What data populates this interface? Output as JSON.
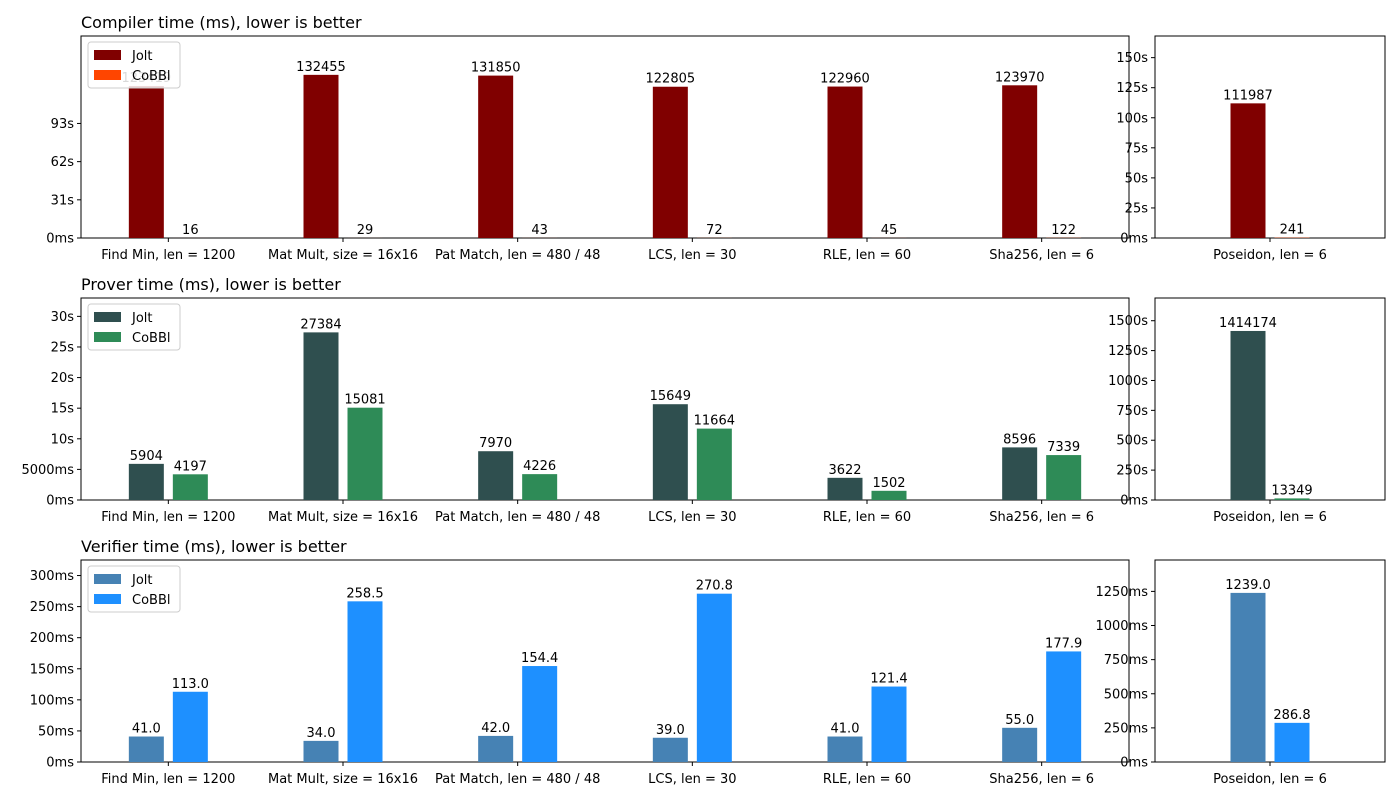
{
  "chart_data": [
    {
      "type": "bar",
      "panel": "compiler-main",
      "title": "Compiler time (ms), lower is better",
      "categories": [
        "Find Min, len = 1200",
        "Mat Mult, size = 16x16",
        "Pat Match, len = 480 / 48",
        "LCS, len = 30",
        "RLE, len = 60",
        "Sha256, len = 6"
      ],
      "series": [
        {
          "name": "Jolt",
          "color": "#800000",
          "values": [
            123419,
            132455,
            131850,
            122805,
            122960,
            123970
          ],
          "labels": [
            "123419",
            "132455",
            "131850",
            "122805",
            "122960",
            "123970"
          ]
        },
        {
          "name": "CoBBl",
          "color": "#ff4500",
          "values": [
            16,
            29,
            43,
            72,
            45,
            122
          ],
          "labels": [
            "16",
            "29",
            "43",
            "72",
            "45",
            "122"
          ]
        }
      ],
      "ylim": [
        0,
        164000
      ],
      "yticks": [
        0,
        31000,
        62000,
        93000
      ],
      "yticklabels": [
        "0ms",
        "31s",
        "62s",
        "93s"
      ],
      "legend": "top-left"
    },
    {
      "type": "bar",
      "panel": "compiler-side",
      "title": "",
      "categories": [
        "Poseidon, len = 6"
      ],
      "series": [
        {
          "name": "Jolt",
          "color": "#800000",
          "values": [
            111987
          ],
          "labels": [
            "111987"
          ]
        },
        {
          "name": "CoBBl",
          "color": "#ff4500",
          "values": [
            241
          ],
          "labels": [
            "241"
          ]
        }
      ],
      "ylim": [
        0,
        168000
      ],
      "yticks": [
        0,
        25000,
        50000,
        75000,
        100000,
        125000,
        150000
      ],
      "yticklabels": [
        "0ms",
        "25s",
        "50s",
        "75s",
        "100s",
        "125s",
        "150s"
      ]
    },
    {
      "type": "bar",
      "panel": "prover-main",
      "title": "Prover time (ms), lower is better",
      "categories": [
        "Find Min, len = 1200",
        "Mat Mult, size = 16x16",
        "Pat Match, len = 480 / 48",
        "LCS, len = 30",
        "RLE, len = 60",
        "Sha256, len = 6"
      ],
      "series": [
        {
          "name": "Jolt",
          "color": "#2f4f4f",
          "values": [
            5904,
            27384,
            7970,
            15649,
            3622,
            8596
          ],
          "labels": [
            "5904",
            "27384",
            "7970",
            "15649",
            "3622",
            "8596"
          ]
        },
        {
          "name": "CoBBl",
          "color": "#2e8b57",
          "values": [
            4197,
            15081,
            4226,
            11664,
            1502,
            7339
          ],
          "labels": [
            "4197",
            "15081",
            "4226",
            "11664",
            "1502",
            "7339"
          ]
        }
      ],
      "ylim": [
        0,
        33000
      ],
      "yticks": [
        0,
        5000,
        10000,
        15000,
        20000,
        25000,
        30000
      ],
      "yticklabels": [
        "0ms",
        "5000ms",
        "10s",
        "15s",
        "20s",
        "25s",
        "30s"
      ],
      "legend": "top-left"
    },
    {
      "type": "bar",
      "panel": "prover-side",
      "title": "",
      "categories": [
        "Poseidon, len = 6"
      ],
      "series": [
        {
          "name": "Jolt",
          "color": "#2f4f4f",
          "values": [
            1414174
          ],
          "labels": [
            "1414174"
          ]
        },
        {
          "name": "CoBBl",
          "color": "#2e8b57",
          "values": [
            13349
          ],
          "labels": [
            "13349"
          ]
        }
      ],
      "ylim": [
        0,
        1690000
      ],
      "yticks": [
        0,
        250000,
        500000,
        750000,
        1000000,
        1250000,
        1500000
      ],
      "yticklabels": [
        "0ms",
        "250s",
        "500s",
        "750s",
        "1000s",
        "1250s",
        "1500s"
      ]
    },
    {
      "type": "bar",
      "panel": "verifier-main",
      "title": "Verifier time (ms), lower is better",
      "categories": [
        "Find Min, len = 1200",
        "Mat Mult, size = 16x16",
        "Pat Match, len = 480 / 48",
        "LCS, len = 30",
        "RLE, len = 60",
        "Sha256, len = 6"
      ],
      "series": [
        {
          "name": "Jolt",
          "color": "#4682b4",
          "values": [
            41.0,
            34.0,
            42.0,
            39.0,
            41.0,
            55.0
          ],
          "labels": [
            "41.0",
            "34.0",
            "42.0",
            "39.0",
            "41.0",
            "55.0"
          ]
        },
        {
          "name": "CoBBl",
          "color": "#1e90ff",
          "values": [
            113.0,
            258.5,
            154.4,
            270.8,
            121.4,
            177.9
          ],
          "labels": [
            "113.0",
            "258.5",
            "154.4",
            "270.8",
            "121.4",
            "177.9"
          ]
        }
      ],
      "ylim": [
        0,
        325
      ],
      "yticks": [
        0,
        50,
        100,
        150,
        200,
        250,
        300
      ],
      "yticklabels": [
        "0ms",
        "50ms",
        "100ms",
        "150ms",
        "200ms",
        "250ms",
        "300ms"
      ],
      "legend": "top-left"
    },
    {
      "type": "bar",
      "panel": "verifier-side",
      "title": "",
      "categories": [
        "Poseidon, len = 6"
      ],
      "series": [
        {
          "name": "Jolt",
          "color": "#4682b4",
          "values": [
            1239.0
          ],
          "labels": [
            "1239.0"
          ]
        },
        {
          "name": "CoBBl",
          "color": "#1e90ff",
          "values": [
            286.8
          ],
          "labels": [
            "286.8"
          ]
        }
      ],
      "ylim": [
        0,
        1480
      ],
      "yticks": [
        0,
        250,
        500,
        750,
        1000,
        1250
      ],
      "yticklabels": [
        "0ms",
        "250ms",
        "500ms",
        "750ms",
        "1000ms",
        "1250ms"
      ]
    }
  ]
}
